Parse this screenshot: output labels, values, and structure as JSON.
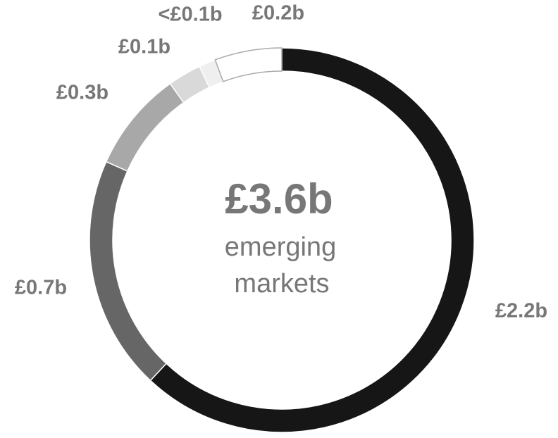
{
  "chart_data": {
    "type": "donut",
    "center_title": "£3.6b",
    "center_text": [
      "emerging",
      "markets"
    ],
    "categories": [
      null,
      null,
      null,
      null,
      null,
      null
    ],
    "values": [
      2.2,
      0.7,
      0.3,
      0.1,
      0.05,
      0.2
    ],
    "value_labels": [
      "£2.2b",
      "£0.7b",
      "£0.3b",
      "£0.1b",
      "<£0.1b",
      "£0.2b"
    ],
    "colors": [
      "#161616",
      "#666666",
      "#a8a8a8",
      "#d9d9d9",
      "#efefef",
      "#ffffff"
    ]
  }
}
